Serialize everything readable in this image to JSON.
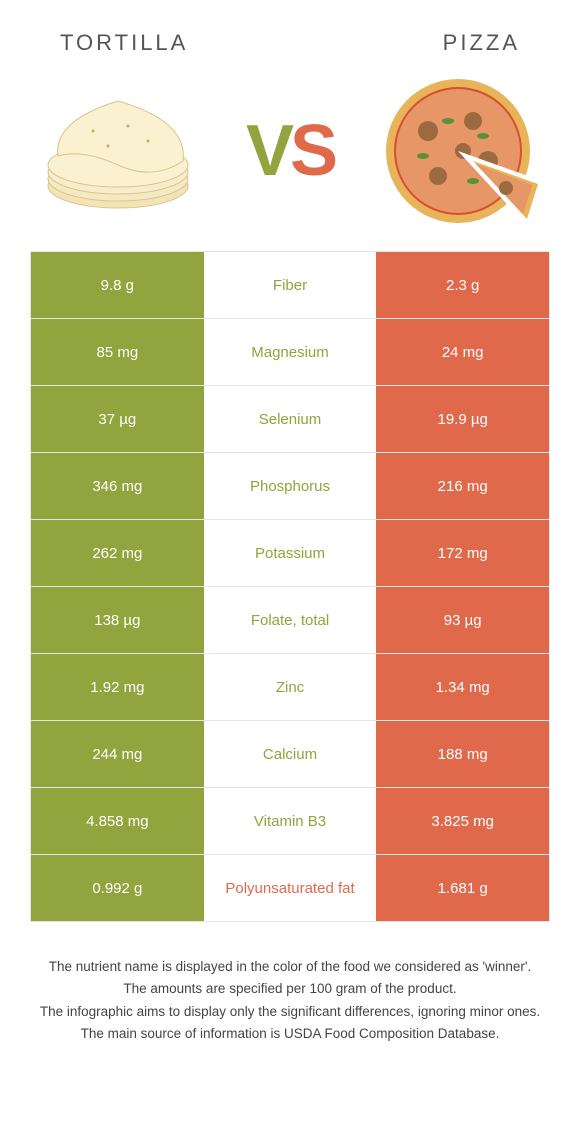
{
  "colors": {
    "left": "#91a43d",
    "right": "#e0694c",
    "row_border": "#e5e5e5",
    "header_text": "#555555",
    "footer_text": "#444444"
  },
  "header": {
    "left_title": "Tortilla",
    "right_title": "Pizza",
    "vs_v": "V",
    "vs_s": "S"
  },
  "rows": [
    {
      "left": "9.8 g",
      "label": "Fiber",
      "right": "2.3 g",
      "winner": "left"
    },
    {
      "left": "85 mg",
      "label": "Magnesium",
      "right": "24 mg",
      "winner": "left"
    },
    {
      "left": "37 µg",
      "label": "Selenium",
      "right": "19.9 µg",
      "winner": "left"
    },
    {
      "left": "346 mg",
      "label": "Phosphorus",
      "right": "216 mg",
      "winner": "left"
    },
    {
      "left": "262 mg",
      "label": "Potassium",
      "right": "172 mg",
      "winner": "left"
    },
    {
      "left": "138 µg",
      "label": "Folate, total",
      "right": "93 µg",
      "winner": "left"
    },
    {
      "left": "1.92 mg",
      "label": "Zinc",
      "right": "1.34 mg",
      "winner": "left"
    },
    {
      "left": "244 mg",
      "label": "Calcium",
      "right": "188 mg",
      "winner": "left"
    },
    {
      "left": "4.858 mg",
      "label": "Vitamin B3",
      "right": "3.825 mg",
      "winner": "left"
    },
    {
      "left": "0.992 g",
      "label": "Polyunsaturated fat",
      "right": "1.681 g",
      "winner": "right"
    }
  ],
  "footer_lines": [
    "The nutrient name is displayed in the color of the food we considered as 'winner'.",
    "The amounts are specified per 100 gram of the product.",
    "The infographic aims to display only the significant differences, ignoring minor ones.",
    "The main source of information is USDA Food Composition Database."
  ]
}
